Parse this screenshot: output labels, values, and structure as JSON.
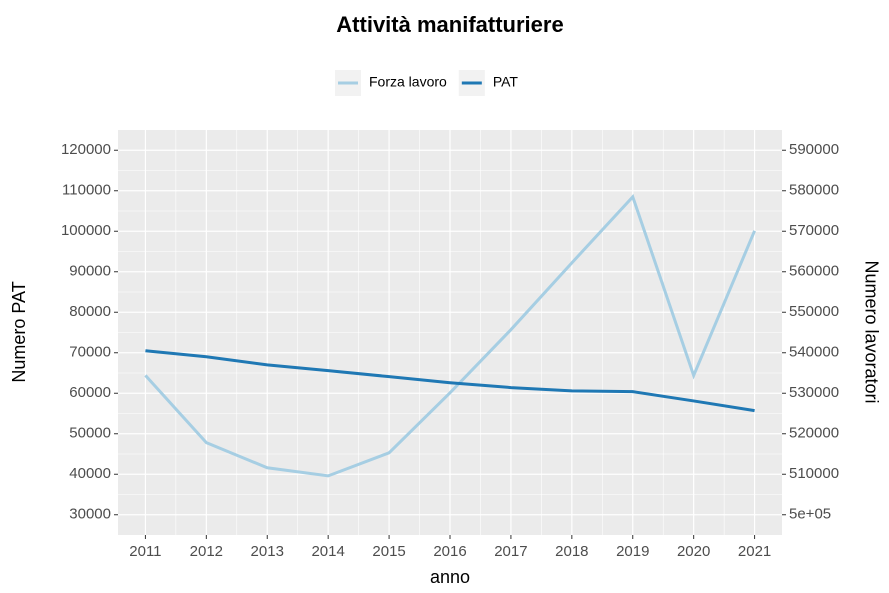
{
  "chart_data": {
    "type": "line",
    "title": "Attività manifatturiere",
    "x_label": "anno",
    "y_label": "Numero PAT",
    "y2_label": "Numero lavoratori",
    "x": [
      2011,
      2012,
      2013,
      2014,
      2015,
      2016,
      2017,
      2018,
      2019,
      2020,
      2021
    ],
    "series": [
      {
        "name": "Forza lavoro",
        "color": "#a6cee3",
        "axis": "y2",
        "values": [
          534400,
          517800,
          511600,
          509600,
          515300,
          530100,
          545700,
          562200,
          578500,
          534400,
          570100
        ]
      },
      {
        "name": "PAT",
        "color": "#1f78b4",
        "values": [
          70500,
          69000,
          67000,
          65600,
          64100,
          62600,
          61400,
          60600,
          60400,
          58100,
          55700
        ]
      }
    ],
    "xlim": [
      2010.55,
      2021.45
    ],
    "xticks": [
      2011,
      2012,
      2013,
      2014,
      2015,
      2016,
      2017,
      2018,
      2019,
      2020,
      2021
    ],
    "ylim": [
      25000,
      125000
    ],
    "yticks": [
      30000,
      40000,
      50000,
      60000,
      70000,
      80000,
      90000,
      100000,
      110000,
      120000
    ],
    "y2lim": [
      495000,
      595000
    ],
    "y2ticks": [
      {
        "value": 500000,
        "label": "5e+05"
      },
      510000,
      520000,
      530000,
      540000,
      550000,
      560000,
      570000,
      580000,
      590000
    ],
    "grid": true,
    "legend_position": "top"
  }
}
